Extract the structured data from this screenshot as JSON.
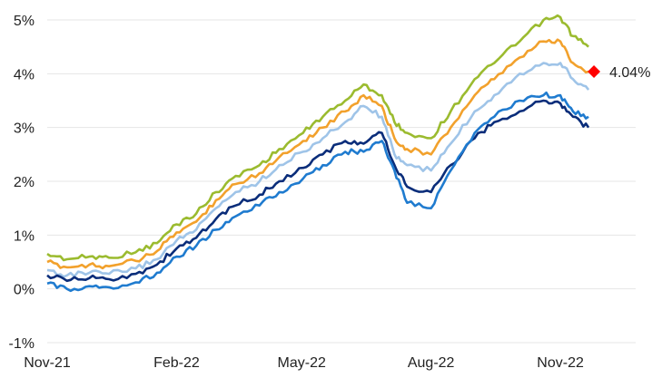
{
  "chart_data": {
    "type": "line",
    "title": "",
    "xlabel": "",
    "ylabel": "",
    "x_ticks": [
      "Nov-21",
      "Feb-22",
      "May-22",
      "Aug-22",
      "Nov-22"
    ],
    "y_ticks": [
      "-1%",
      "0%",
      "1%",
      "2%",
      "3%",
      "4%",
      "5%"
    ],
    "ylim": [
      -1,
      5
    ],
    "xlim": [
      "2021-11-01",
      "2022-11-30"
    ],
    "grid": "horizontal",
    "legend": "none",
    "x": [
      "2021-11-01",
      "2021-11-15",
      "2021-12-01",
      "2021-12-15",
      "2022-01-03",
      "2022-01-18",
      "2022-02-01",
      "2022-02-15",
      "2022-03-01",
      "2022-03-15",
      "2022-04-01",
      "2022-04-15",
      "2022-05-02",
      "2022-05-16",
      "2022-06-01",
      "2022-06-14",
      "2022-06-27",
      "2022-07-06",
      "2022-07-15",
      "2022-08-01",
      "2022-08-15",
      "2022-09-01",
      "2022-09-15",
      "2022-10-03",
      "2022-10-20",
      "2022-11-01",
      "2022-11-10",
      "2022-11-21"
    ],
    "series": [
      {
        "color": "#9bbb2f",
        "values": [
          0.65,
          0.55,
          0.6,
          0.58,
          0.68,
          0.85,
          1.2,
          1.4,
          1.8,
          2.1,
          2.3,
          2.6,
          2.9,
          3.2,
          3.5,
          3.8,
          3.6,
          3.1,
          2.9,
          2.8,
          3.3,
          3.9,
          4.2,
          4.6,
          5.0,
          5.05,
          4.7,
          4.5
        ]
      },
      {
        "color": "#f2a12c",
        "values": [
          0.5,
          0.4,
          0.45,
          0.42,
          0.52,
          0.7,
          1.05,
          1.25,
          1.65,
          1.95,
          2.15,
          2.45,
          2.75,
          3.0,
          3.3,
          3.6,
          3.4,
          2.8,
          2.6,
          2.5,
          3.0,
          3.6,
          3.9,
          4.3,
          4.6,
          4.6,
          4.2,
          4.04
        ]
      },
      {
        "color": "#9fc4e8",
        "values": [
          0.35,
          0.25,
          0.3,
          0.28,
          0.38,
          0.55,
          0.9,
          1.1,
          1.5,
          1.8,
          2.0,
          2.3,
          2.55,
          2.8,
          3.1,
          3.4,
          3.2,
          2.5,
          2.3,
          2.2,
          2.7,
          3.3,
          3.6,
          4.0,
          4.2,
          4.2,
          3.9,
          3.7
        ]
      },
      {
        "color": "#0a2d7a",
        "values": [
          0.25,
          0.15,
          0.2,
          0.18,
          0.28,
          0.45,
          0.75,
          0.95,
          1.3,
          1.55,
          1.75,
          2.0,
          2.25,
          2.5,
          2.75,
          2.7,
          2.9,
          2.3,
          1.9,
          1.8,
          2.3,
          2.8,
          3.1,
          3.3,
          3.5,
          3.45,
          3.2,
          3.0
        ]
      },
      {
        "color": "#1f7bcf",
        "values": [
          0.1,
          0.0,
          0.05,
          0.03,
          0.12,
          0.3,
          0.6,
          0.8,
          1.1,
          1.35,
          1.55,
          1.8,
          2.05,
          2.3,
          2.55,
          2.55,
          2.75,
          2.2,
          1.6,
          1.5,
          2.2,
          2.9,
          3.2,
          3.5,
          3.6,
          3.6,
          3.3,
          3.2
        ]
      }
    ],
    "annotation": {
      "label": "4.04%",
      "value": 4.04,
      "x": "2022-11-21",
      "color": "#ff0000"
    }
  }
}
